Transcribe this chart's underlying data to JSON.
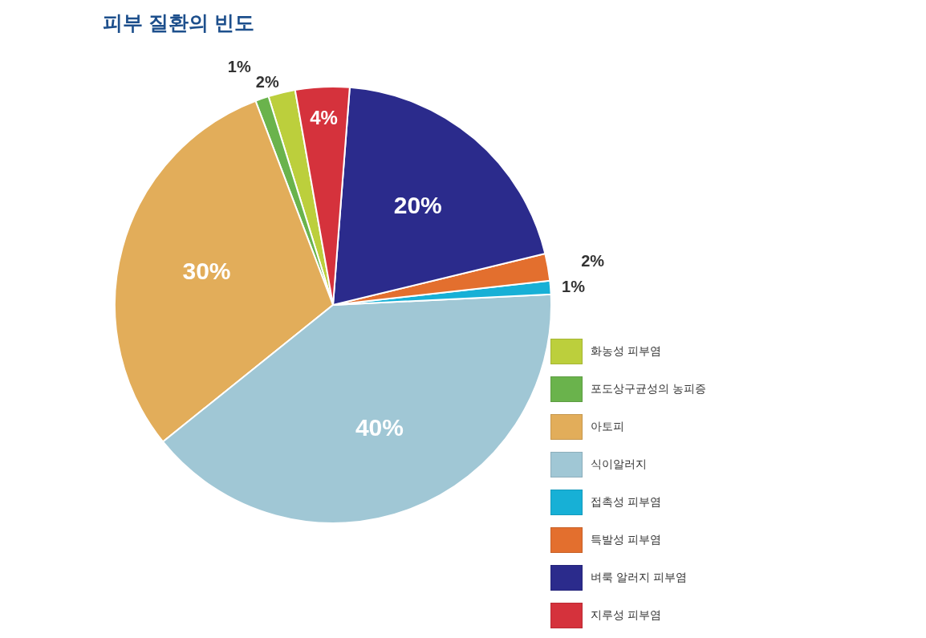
{
  "chart_data": {
    "type": "pie",
    "title": "피부 질환의 빈도",
    "categories": [
      "화농성 피부염",
      "포도상구균성의 농피증",
      "아토피",
      "식이알러지",
      "접촉성 피부염",
      "특발성 피부염",
      "벼룩 알러지 피부염",
      "지루성 피부염"
    ],
    "values": [
      2,
      1,
      30,
      40,
      1,
      2,
      20,
      4
    ],
    "value_labels": [
      "2%",
      "1%",
      "30%",
      "40%",
      "1%",
      "2%",
      "20%",
      "4%"
    ],
    "colors": [
      "#bccf3c",
      "#6ab34c",
      "#e2ad5a",
      "#a0c7d5",
      "#17b0d6",
      "#e36f2e",
      "#2b2b8c",
      "#d5323c"
    ],
    "legend": "bottom right"
  }
}
